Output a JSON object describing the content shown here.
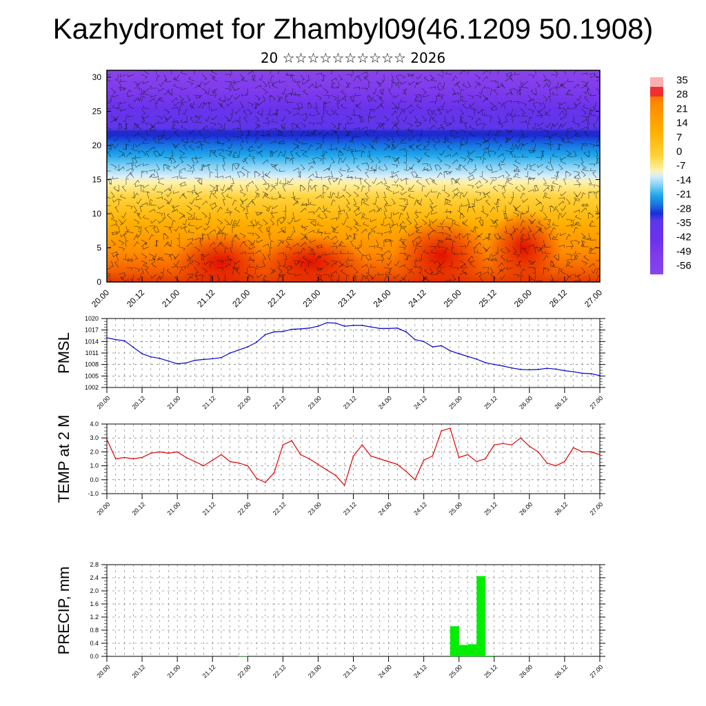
{
  "title": "Kazhydromet for Zhambyl09(46.1209 50.1908)",
  "subtitle": "20 ☆☆☆☆☆☆☆☆☆☆ 2026",
  "x_tick_labels": [
    "20.00",
    "20.12",
    "21.00",
    "21.12",
    "22.00",
    "22.12",
    "23.00",
    "23.12",
    "24.00",
    "24.12",
    "25.00",
    "25.12",
    "26.00",
    "26.12",
    "27.00"
  ],
  "colors": {
    "pmsl_line": "#0000cc",
    "temp_line": "#e00000",
    "precip_bar": "#00ee00"
  },
  "chart_data": [
    {
      "type": "heatmap",
      "name": "cross-section",
      "ylim": [
        0,
        31
      ],
      "y_ticks": [
        0,
        5,
        10,
        15,
        20,
        25,
        30
      ],
      "colorbar_labels": [
        "35",
        "28",
        "21",
        "14",
        "7",
        "0",
        "-7",
        "-14",
        "-21",
        "-28",
        "-35",
        "-42",
        "-49",
        "-56"
      ],
      "overlay": "wind barbs"
    },
    {
      "type": "line",
      "ylabel": "PMSL",
      "ylim": [
        1002,
        1020
      ],
      "y_ticks": [
        "1002",
        "1005",
        "1008",
        "1011",
        "1014",
        "1017",
        "1020"
      ],
      "x": [
        0,
        0.125,
        0.25,
        0.375,
        0.5,
        0.625,
        0.75,
        0.875,
        1,
        1.125,
        1.25,
        1.375,
        1.5,
        1.625,
        1.75,
        1.875,
        2,
        2.125,
        2.25,
        2.375,
        2.5,
        2.625,
        2.75,
        2.875,
        3,
        3.125,
        3.25,
        3.375,
        3.5,
        3.625,
        3.75,
        3.875,
        4,
        4.125,
        4.25,
        4.375,
        4.5,
        4.625,
        4.75,
        4.875,
        5,
        5.125,
        5.25,
        5.375,
        5.5,
        5.625,
        5.75,
        5.875,
        6,
        6.125,
        6.25,
        6.375,
        6.5,
        6.625,
        6.75,
        6.875,
        7
      ],
      "values": [
        1015,
        1014.5,
        1014.2,
        1012.5,
        1010.8,
        1010,
        1009.6,
        1008.9,
        1008.2,
        1008.4,
        1009.1,
        1009.3,
        1009.5,
        1009.8,
        1011,
        1011.8,
        1012.6,
        1013.8,
        1015.8,
        1016.5,
        1016.6,
        1017.2,
        1017.3,
        1017.5,
        1018,
        1018.9,
        1018.8,
        1018,
        1018.2,
        1018.2,
        1017.8,
        1017.4,
        1017.4,
        1017.5,
        1016.5,
        1014.5,
        1014,
        1012.6,
        1012.9,
        1011.6,
        1010.8,
        1010.1,
        1009.4,
        1008.5,
        1008,
        1007.6,
        1007.1,
        1006.7,
        1006.6,
        1006.7,
        1007,
        1006.8,
        1006.4,
        1006.1,
        1005.7,
        1005.6,
        1005.1
      ]
    },
    {
      "type": "line",
      "ylabel": "TEMP at 2 M",
      "ylim": [
        -1,
        4
      ],
      "y_ticks": [
        "-1.0",
        "0.0",
        "1.0",
        "2.0",
        "3.0",
        "4.0"
      ],
      "x": [
        0,
        0.125,
        0.25,
        0.375,
        0.5,
        0.625,
        0.75,
        0.875,
        1,
        1.125,
        1.25,
        1.375,
        1.5,
        1.625,
        1.75,
        1.875,
        2,
        2.125,
        2.25,
        2.375,
        2.5,
        2.625,
        2.75,
        2.875,
        3,
        3.125,
        3.25,
        3.375,
        3.5,
        3.625,
        3.75,
        3.875,
        4,
        4.125,
        4.25,
        4.375,
        4.5,
        4.625,
        4.75,
        4.875,
        5,
        5.125,
        5.25,
        5.375,
        5.5,
        5.625,
        5.75,
        5.875,
        6,
        6.125,
        6.25,
        6.375,
        6.5,
        6.625,
        6.75,
        6.875,
        7
      ],
      "values": [
        2.9,
        1.5,
        1.6,
        1.5,
        1.6,
        1.9,
        2.0,
        1.9,
        2.0,
        1.6,
        1.3,
        1.0,
        1.4,
        1.8,
        1.3,
        1.2,
        1.0,
        0.1,
        -0.2,
        0.5,
        2.5,
        2.8,
        1.8,
        1.5,
        1.1,
        0.7,
        0.3,
        -0.4,
        1.7,
        2.5,
        1.7,
        1.5,
        1.3,
        1.1,
        0.6,
        0.0,
        1.4,
        1.7,
        3.5,
        3.7,
        1.6,
        1.8,
        1.3,
        1.5,
        2.5,
        2.6,
        2.5,
        3.0,
        2.4,
        2.0,
        1.2,
        1.0,
        1.3,
        2.3,
        2.0,
        2.0,
        1.8
      ]
    },
    {
      "type": "bar",
      "ylabel": "PRECIP, mm",
      "ylim": [
        0,
        2.8
      ],
      "y_ticks": [
        "0.0",
        "0.4",
        "0.8",
        "1.2",
        "1.6",
        "2.0",
        "2.4",
        "2.8"
      ],
      "x": [
        1.875,
        4.875,
        5.0,
        5.125,
        5.25,
        5.375
      ],
      "values": [
        0.01,
        0.92,
        0.35,
        0.37,
        2.45,
        0.02
      ]
    }
  ]
}
